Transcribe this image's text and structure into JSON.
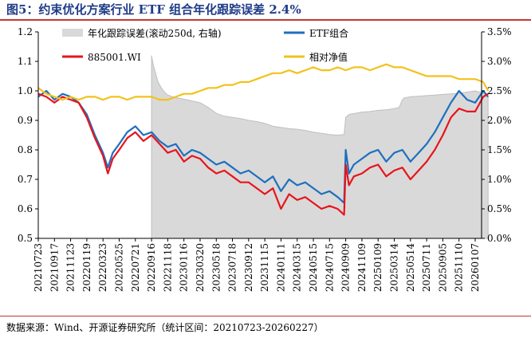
{
  "title": "图5：约束优化方案行业 ETF 组合年化跟踪误差 2.4%",
  "source": "数据来源：Wind、开源证券研究所（统计区间：20210723-20260227）",
  "colors": {
    "tracking_error_area": "#d9d9d9",
    "tracking_error_edge": "#bfbfbf",
    "etf": "#1f6fbf",
    "benchmark": "#e8141c",
    "relative_nav": "#f2c21a"
  },
  "chart_data": {
    "type": "line",
    "title": "",
    "left_axis": {
      "min": 0.5,
      "max": 1.2,
      "ticks": [
        "0.5",
        "0.6",
        "0.7",
        "0.8",
        "0.9",
        "1.0",
        "1.1",
        "1.2"
      ]
    },
    "right_axis": {
      "min": 0,
      "max": 3.5,
      "ticks": [
        "0.0%",
        "0.5%",
        "1.0%",
        "1.5%",
        "2.0%",
        "2.5%",
        "3.0%",
        "3.5%"
      ]
    },
    "x_ticks": [
      "20210723",
      "20210917",
      "20211123",
      "20220119",
      "20220323",
      "20220525",
      "20220721",
      "20220916",
      "20221118",
      "20230116",
      "20230320",
      "20230518",
      "20230718",
      "20230912",
      "20231115",
      "20240111",
      "20240315",
      "20240515",
      "20240715",
      "20240909",
      "20241109",
      "20250109",
      "20250314",
      "20250514",
      "20250711",
      "20250905",
      "20251110",
      "20260107"
    ],
    "legend": [
      "年化跟踪误差(滚动250d, 右轴)",
      "ETF组合",
      "885001.WI",
      "相对净值"
    ],
    "series": [
      {
        "name": "年化跟踪误差(滚动250d, 右轴)",
        "axis": "right",
        "type": "area",
        "x": [
          7.0,
          7.03,
          7.1,
          7.2,
          7.4,
          7.6,
          7.8,
          8.0,
          8.3,
          8.6,
          9.0,
          9.5,
          10.0,
          10.5,
          11.0,
          11.5,
          12.0,
          12.5,
          13.0,
          13.5,
          14.0,
          14.5,
          15.0,
          15.5,
          16.0,
          16.5,
          17.0,
          17.5,
          18.0,
          18.5,
          18.9,
          19.0,
          19.2,
          19.6,
          20.0,
          20.5,
          21.0,
          21.5,
          22.0,
          22.3,
          22.5,
          22.6,
          23.0,
          23.5,
          24.0,
          24.5,
          25.0,
          25.5,
          26.0,
          26.5,
          27.0,
          27.5,
          27.8
        ],
        "values": [
          3.1,
          3.05,
          2.95,
          2.85,
          2.65,
          2.55,
          2.48,
          2.43,
          2.4,
          2.38,
          2.36,
          2.33,
          2.3,
          2.22,
          2.12,
          2.07,
          2.05,
          2.03,
          2.0,
          1.98,
          1.95,
          1.9,
          1.88,
          1.86,
          1.85,
          1.83,
          1.8,
          1.78,
          1.76,
          1.75,
          1.76,
          2.05,
          2.1,
          2.12,
          2.14,
          2.15,
          2.17,
          2.18,
          2.2,
          2.22,
          2.35,
          2.38,
          2.4,
          2.41,
          2.42,
          2.43,
          2.44,
          2.45,
          2.46,
          2.48,
          2.5,
          2.46,
          2.4
        ]
      },
      {
        "name": "ETF组合",
        "axis": "left",
        "x": [
          0.0,
          0.5,
          1.0,
          1.5,
          2.0,
          2.5,
          3.0,
          3.5,
          4.0,
          4.3,
          4.6,
          5.0,
          5.5,
          6.0,
          6.5,
          7.0,
          7.5,
          8.0,
          8.5,
          9.0,
          9.5,
          10.0,
          10.5,
          11.0,
          11.5,
          12.0,
          12.5,
          13.0,
          13.5,
          14.0,
          14.5,
          15.0,
          15.5,
          16.0,
          16.5,
          17.0,
          17.5,
          18.0,
          18.5,
          18.9,
          19.0,
          19.2,
          19.5,
          20.0,
          20.5,
          21.0,
          21.5,
          22.0,
          22.5,
          23.0,
          23.5,
          24.0,
          24.5,
          25.0,
          25.5,
          26.0,
          26.5,
          27.0,
          27.5,
          27.8
        ],
        "values": [
          0.98,
          1.0,
          0.97,
          0.99,
          0.98,
          0.96,
          0.92,
          0.85,
          0.79,
          0.74,
          0.79,
          0.82,
          0.86,
          0.88,
          0.85,
          0.86,
          0.83,
          0.81,
          0.82,
          0.78,
          0.8,
          0.79,
          0.77,
          0.75,
          0.76,
          0.74,
          0.72,
          0.73,
          0.71,
          0.69,
          0.71,
          0.66,
          0.7,
          0.68,
          0.69,
          0.67,
          0.65,
          0.66,
          0.64,
          0.62,
          0.8,
          0.72,
          0.75,
          0.77,
          0.79,
          0.8,
          0.76,
          0.79,
          0.8,
          0.76,
          0.79,
          0.82,
          0.86,
          0.91,
          0.96,
          1.0,
          0.97,
          0.96,
          1.0,
          0.98
        ]
      },
      {
        "name": "885001.WI",
        "axis": "left",
        "x": [
          0.0,
          0.5,
          1.0,
          1.5,
          2.0,
          2.5,
          3.0,
          3.5,
          4.0,
          4.3,
          4.6,
          5.0,
          5.5,
          6.0,
          6.5,
          7.0,
          7.5,
          8.0,
          8.5,
          9.0,
          9.5,
          10.0,
          10.5,
          11.0,
          11.5,
          12.0,
          12.5,
          13.0,
          13.5,
          14.0,
          14.5,
          15.0,
          15.5,
          16.0,
          16.5,
          17.0,
          17.5,
          18.0,
          18.5,
          18.9,
          19.0,
          19.2,
          19.5,
          20.0,
          20.5,
          21.0,
          21.5,
          22.0,
          22.5,
          23.0,
          23.5,
          24.0,
          24.5,
          25.0,
          25.5,
          26.0,
          26.5,
          27.0,
          27.5,
          27.8
        ],
        "values": [
          0.99,
          0.98,
          0.96,
          0.98,
          0.97,
          0.96,
          0.91,
          0.84,
          0.78,
          0.72,
          0.77,
          0.8,
          0.84,
          0.86,
          0.83,
          0.85,
          0.82,
          0.79,
          0.8,
          0.76,
          0.78,
          0.77,
          0.74,
          0.72,
          0.73,
          0.71,
          0.69,
          0.69,
          0.67,
          0.65,
          0.67,
          0.6,
          0.65,
          0.63,
          0.64,
          0.62,
          0.6,
          0.61,
          0.6,
          0.58,
          0.75,
          0.68,
          0.71,
          0.72,
          0.74,
          0.75,
          0.71,
          0.73,
          0.74,
          0.7,
          0.73,
          0.76,
          0.8,
          0.85,
          0.91,
          0.94,
          0.93,
          0.93,
          0.98,
          0.99
        ]
      },
      {
        "name": "相对净值",
        "axis": "left",
        "x": [
          0.0,
          0.5,
          1.0,
          1.5,
          2.0,
          2.5,
          3.0,
          3.5,
          4.0,
          4.5,
          5.0,
          5.5,
          6.0,
          6.5,
          7.0,
          7.5,
          8.0,
          8.5,
          9.0,
          9.5,
          10.0,
          10.5,
          11.0,
          11.5,
          12.0,
          12.5,
          13.0,
          13.5,
          14.0,
          14.5,
          15.0,
          15.5,
          16.0,
          16.5,
          17.0,
          17.5,
          18.0,
          18.5,
          19.0,
          19.5,
          20.0,
          20.5,
          21.0,
          21.5,
          22.0,
          22.5,
          23.0,
          23.5,
          24.0,
          24.5,
          25.0,
          25.5,
          26.0,
          26.5,
          27.0,
          27.5,
          27.8
        ],
        "values": [
          1.01,
          0.99,
          0.98,
          0.97,
          0.98,
          0.97,
          0.98,
          0.98,
          0.97,
          0.98,
          0.98,
          0.97,
          0.98,
          0.98,
          0.98,
          0.97,
          0.97,
          0.98,
          0.99,
          0.99,
          1.0,
          1.01,
          1.01,
          1.02,
          1.02,
          1.03,
          1.03,
          1.04,
          1.05,
          1.06,
          1.06,
          1.07,
          1.06,
          1.07,
          1.08,
          1.07,
          1.07,
          1.08,
          1.07,
          1.08,
          1.08,
          1.07,
          1.08,
          1.09,
          1.08,
          1.08,
          1.07,
          1.06,
          1.05,
          1.05,
          1.05,
          1.05,
          1.04,
          1.04,
          1.04,
          1.03,
          1.0
        ]
      }
    ]
  }
}
